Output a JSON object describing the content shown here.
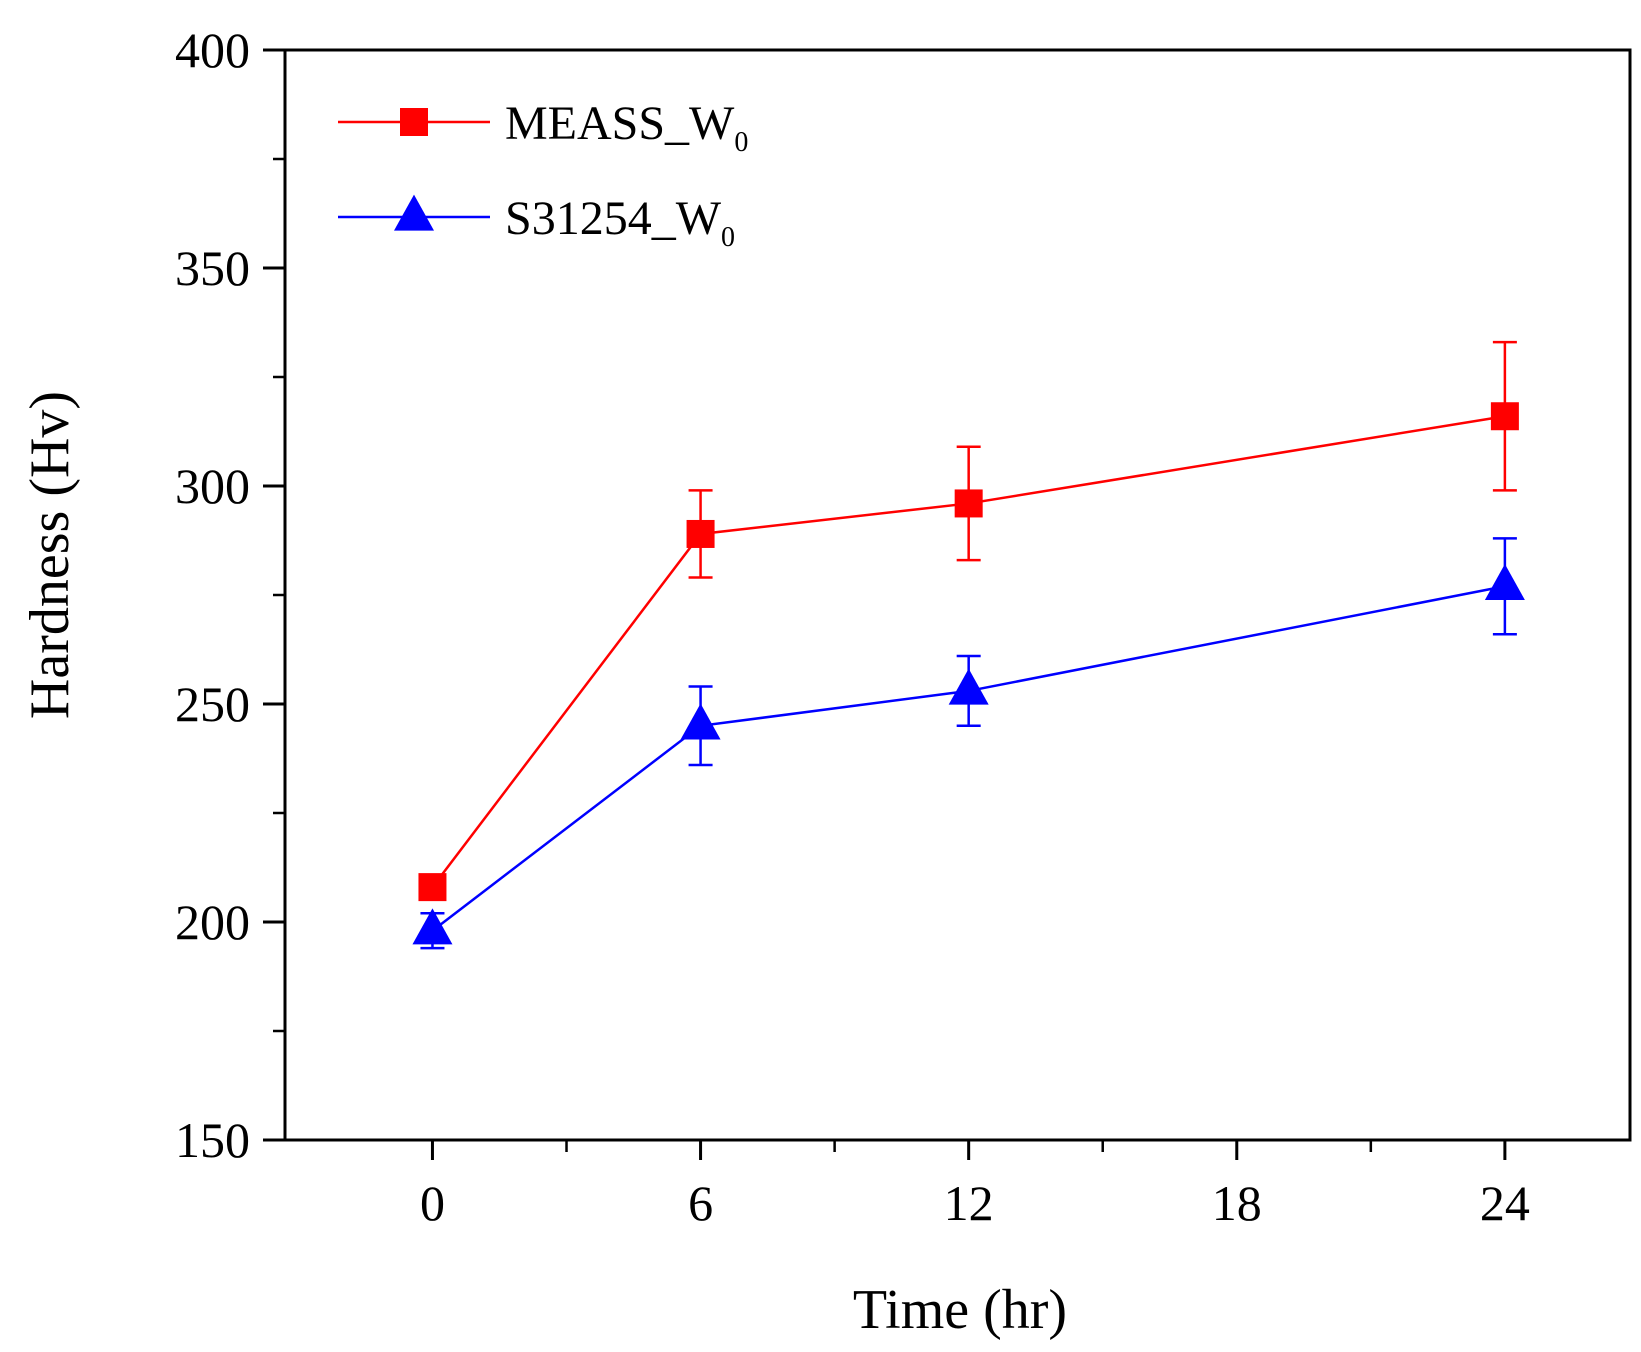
{
  "chart_data": {
    "type": "line",
    "title": "",
    "xlabel": "Time (hr)",
    "ylabel": "Hardness (Hv)",
    "xlim": [
      -3.3,
      26.8
    ],
    "ylim": [
      150,
      400
    ],
    "xticks": [
      0,
      6,
      12,
      18,
      24
    ],
    "xticks_minor": [
      3,
      9,
      15,
      21
    ],
    "yticks": [
      150,
      200,
      250,
      300,
      350,
      400
    ],
    "yticks_minor": [
      175,
      225,
      275,
      325,
      375
    ],
    "grid": false,
    "legend_position": "top-left",
    "series": [
      {
        "name": "MEASS_W",
        "name_subscript": "0",
        "color": "#ff0000",
        "marker": "square",
        "x": [
          0,
          6,
          12,
          24
        ],
        "values": [
          208,
          289,
          296,
          316
        ],
        "error": [
          0,
          10,
          13,
          17
        ]
      },
      {
        "name": "S31254_W",
        "name_subscript": "0",
        "color": "#0000ff",
        "marker": "triangle",
        "x": [
          0,
          6,
          12,
          24
        ],
        "values": [
          198,
          245,
          253,
          277
        ],
        "error": [
          4,
          9,
          8,
          11
        ]
      }
    ]
  }
}
